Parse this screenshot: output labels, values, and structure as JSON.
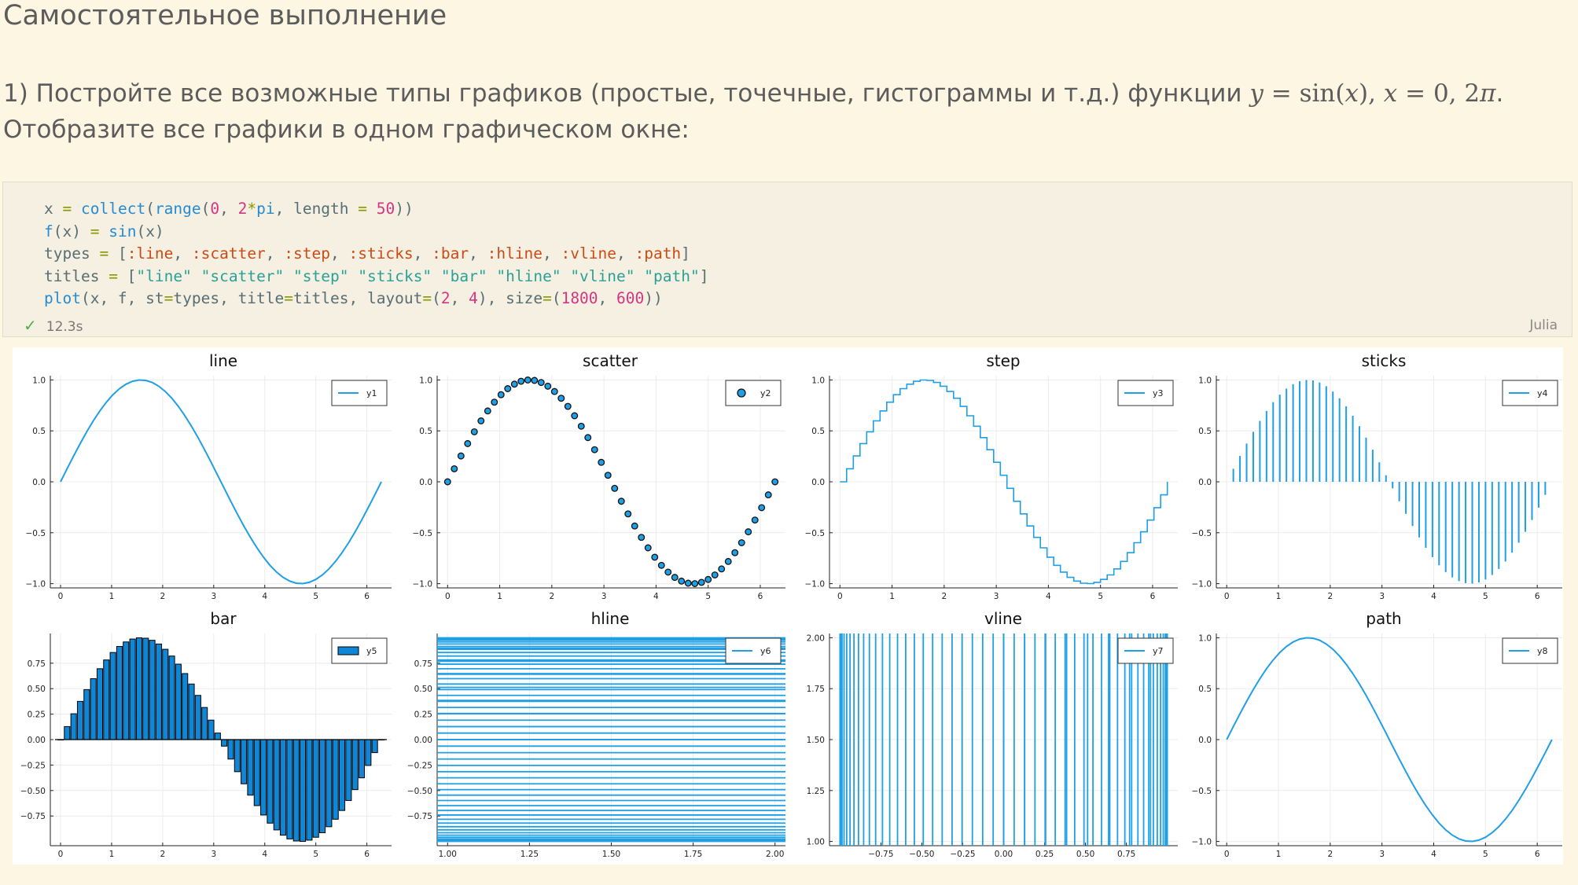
{
  "heading": "Самостоятельное выполнение",
  "task": {
    "prefix": "1) Постройте все возможные типы графиков (простые, точечные, гистограммы и т.д.) функции ",
    "formula_y": "y",
    "formula_eq": " = sin(",
    "formula_x": "x",
    "formula_close": "), ",
    "formula_x2": "x",
    "formula_range": " = 0, 2",
    "formula_pi": "π",
    "suffix": ". Отобразите все графики в одном графическом окне:"
  },
  "code_cell": {
    "lines": [
      "x = collect(range(0, 2*pi, length = 50))",
      "f(x) = sin(x)",
      "types = [:line, :scatter, :step, :sticks, :bar, :hline, :vline, :path]",
      "titles = [\"line\" \"scatter\" \"step\" \"sticks\" \"bar\" \"hline\" \"vline\" \"path\"]",
      "plot(x, f, st=types, title=titles, layout=(2, 4), size=(1800, 600))"
    ],
    "status_icon": "check-icon",
    "status_time": "12.3s",
    "language": "Julia"
  },
  "colors": {
    "series": "#1f9fe6",
    "marker_edge": "#111111",
    "bar_fill": "#0f86d6"
  },
  "chart_data": [
    {
      "type": "line",
      "title": "line",
      "legend": "y1",
      "legend_position": "top-right",
      "x_ticks": [
        "0",
        "1",
        "2",
        "3",
        "4",
        "5",
        "6"
      ],
      "y_ticks": [
        "1.0",
        "0.5",
        "0.0",
        "−0.5",
        "−1.0"
      ],
      "xlim": [
        0,
        6.283
      ],
      "ylim": [
        -1,
        1
      ],
      "x_range": [
        0,
        6.283
      ],
      "n_points": 50,
      "function": "sin(x)",
      "grid": true
    },
    {
      "type": "scatter",
      "title": "scatter",
      "legend": "y2",
      "legend_position": "top-right",
      "x_ticks": [
        "0",
        "1",
        "2",
        "3",
        "4",
        "5",
        "6"
      ],
      "y_ticks": [
        "1.0",
        "0.5",
        "0.0",
        "−0.5",
        "−1.0"
      ],
      "xlim": [
        0,
        6.283
      ],
      "ylim": [
        -1,
        1
      ],
      "x_range": [
        0,
        6.283
      ],
      "n_points": 50,
      "function": "sin(x)",
      "grid": true
    },
    {
      "type": "step",
      "title": "step",
      "legend": "y3",
      "legend_position": "top-right",
      "x_ticks": [
        "0",
        "1",
        "2",
        "3",
        "4",
        "5",
        "6"
      ],
      "y_ticks": [
        "1.0",
        "0.5",
        "0.0",
        "−0.5",
        "−1.0"
      ],
      "xlim": [
        0,
        6.283
      ],
      "ylim": [
        -1,
        1
      ],
      "x_range": [
        0,
        6.283
      ],
      "n_points": 50,
      "function": "sin(x)",
      "grid": true
    },
    {
      "type": "sticks",
      "title": "sticks",
      "legend": "y4",
      "legend_position": "top-right",
      "x_ticks": [
        "0",
        "1",
        "2",
        "3",
        "4",
        "5",
        "6"
      ],
      "y_ticks": [
        "1.0",
        "0.5",
        "0.0",
        "−0.5",
        "−1.0"
      ],
      "xlim": [
        0,
        6.283
      ],
      "ylim": [
        -1,
        1
      ],
      "x_range": [
        0,
        6.283
      ],
      "n_points": 50,
      "function": "sin(x)",
      "grid": true
    },
    {
      "type": "bar",
      "title": "bar",
      "legend": "y5",
      "legend_position": "top-right",
      "x_ticks": [
        "0",
        "1",
        "2",
        "3",
        "4",
        "5",
        "6"
      ],
      "y_ticks": [
        "0.75",
        "0.50",
        "0.25",
        "0.00",
        "−0.25",
        "−0.50",
        "−0.75"
      ],
      "xlim": [
        0,
        6.283
      ],
      "ylim": [
        -1,
        1
      ],
      "x_range": [
        0,
        6.283
      ],
      "n_points": 50,
      "function": "sin(x)",
      "grid": true
    },
    {
      "type": "hline",
      "title": "hline",
      "legend": "y6",
      "legend_position": "top-right",
      "x_ticks": [
        "1.00",
        "1.25",
        "1.50",
        "1.75",
        "2.00"
      ],
      "y_ticks": [
        "0.75",
        "0.50",
        "0.25",
        "0.00",
        "−0.25",
        "−0.50",
        "−0.75"
      ],
      "xlim": [
        1,
        2
      ],
      "ylim": [
        -1,
        1
      ],
      "x_range": [
        0,
        6.283
      ],
      "n_points": 50,
      "function": "sin(x)",
      "grid": true
    },
    {
      "type": "vline",
      "title": "vline",
      "legend": "y7",
      "legend_position": "top-right",
      "x_ticks": [
        "−0.75",
        "−0.50",
        "−0.25",
        "0.00",
        "0.25",
        "0.50",
        "0.75"
      ],
      "y_ticks": [
        "2.00",
        "1.75",
        "1.50",
        "1.25",
        "1.00"
      ],
      "xlim": [
        -1,
        1
      ],
      "ylim": [
        1,
        2
      ],
      "x_range": [
        0,
        6.283
      ],
      "n_points": 50,
      "function": "sin(x)",
      "grid": true
    },
    {
      "type": "path",
      "title": "path",
      "legend": "y8",
      "legend_position": "top-right",
      "x_ticks": [
        "0",
        "1",
        "2",
        "3",
        "4",
        "5",
        "6"
      ],
      "y_ticks": [
        "1.0",
        "0.5",
        "0.0",
        "−0.5",
        "−1.0"
      ],
      "xlim": [
        0,
        6.283
      ],
      "ylim": [
        -1,
        1
      ],
      "x_range": [
        0,
        6.283
      ],
      "n_points": 50,
      "function": "sin(x)",
      "grid": true
    }
  ]
}
